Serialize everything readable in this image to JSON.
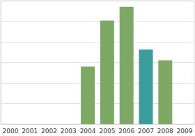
{
  "chart_data": {
    "type": "bar",
    "categories": [
      "2000",
      "2001",
      "2002",
      "2003",
      "2004",
      "2005",
      "2006",
      "2007",
      "2008",
      "2009"
    ],
    "values": [
      null,
      null,
      null,
      null,
      2.8,
      5.03,
      5.7,
      3.63,
      3.1,
      null
    ],
    "colors": [
      "#7ea965",
      "#7ea965",
      "#7ea965",
      "#7ea965",
      "#7ea965",
      "#7ea965",
      "#7ea965",
      "#3a9c9b",
      "#7ea965",
      "#7ea965"
    ],
    "ylim": [
      0,
      6
    ],
    "yticks": [
      0,
      1,
      2,
      3,
      4,
      5,
      6
    ],
    "grid": true,
    "tick_labels": "x"
  }
}
